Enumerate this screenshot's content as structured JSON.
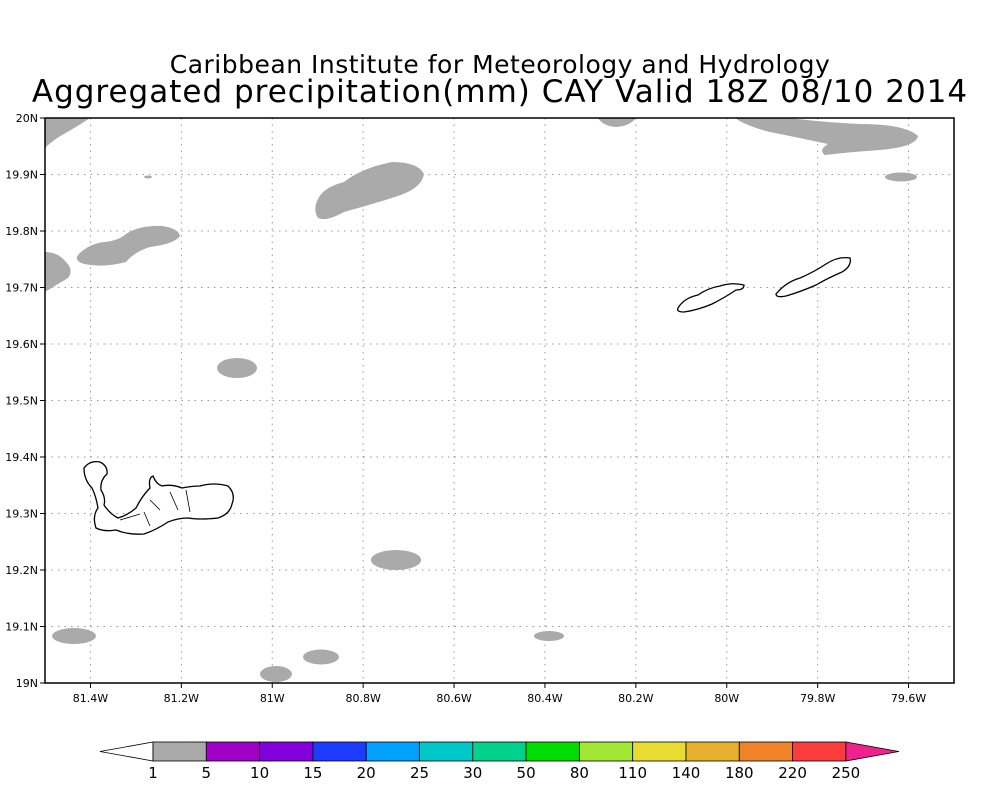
{
  "title": {
    "line1": "Caribbean Institute for Meteorology and Hydrology",
    "line2": "Aggregated precipitation(mm) CAY Valid 18Z 08/10 2014"
  },
  "map": {
    "lon_range": [
      -81.5,
      -79.5
    ],
    "lat_range": [
      19.0,
      20.0
    ],
    "x_ticks": [
      {
        "value": -81.4,
        "label": "81.4W"
      },
      {
        "value": -81.2,
        "label": "81.2W"
      },
      {
        "value": -81.0,
        "label": "81W"
      },
      {
        "value": -80.8,
        "label": "80.8W"
      },
      {
        "value": -80.6,
        "label": "80.6W"
      },
      {
        "value": -80.4,
        "label": "80.4W"
      },
      {
        "value": -80.2,
        "label": "80.2W"
      },
      {
        "value": -80.0,
        "label": "80W"
      },
      {
        "value": -79.8,
        "label": "79.8W"
      },
      {
        "value": -79.6,
        "label": "79.6W"
      }
    ],
    "y_ticks": [
      {
        "value": 19.0,
        "label": "19N"
      },
      {
        "value": 19.1,
        "label": "19.1N"
      },
      {
        "value": 19.2,
        "label": "19.2N"
      },
      {
        "value": 19.3,
        "label": "19.3N"
      },
      {
        "value": 19.4,
        "label": "19.4N"
      },
      {
        "value": 19.5,
        "label": "19.5N"
      },
      {
        "value": 19.6,
        "label": "19.6N"
      },
      {
        "value": 19.7,
        "label": "19.7N"
      },
      {
        "value": 19.8,
        "label": "19.8N"
      },
      {
        "value": 19.9,
        "label": "19.9N"
      },
      {
        "value": 20.0,
        "label": "20N"
      }
    ],
    "grid": true,
    "precip_color_1_5": "#aaaaaa",
    "precip_color_5_10": "#a000c8"
  },
  "legend": {
    "under_color": "#ffffff",
    "over_color": "#f0208c",
    "bins": [
      {
        "color": "#aaaaaa"
      },
      {
        "color": "#a000c8"
      },
      {
        "color": "#8200dc"
      },
      {
        "color": "#1e3cff"
      },
      {
        "color": "#00a0ff"
      },
      {
        "color": "#00c8c8"
      },
      {
        "color": "#00d28c"
      },
      {
        "color": "#00dc00"
      },
      {
        "color": "#a0e632"
      },
      {
        "color": "#e6dc32"
      },
      {
        "color": "#e6af2d"
      },
      {
        "color": "#f08228"
      },
      {
        "color": "#fa3c3c"
      }
    ],
    "labels": [
      "1",
      "5",
      "10",
      "15",
      "20",
      "25",
      "30",
      "50",
      "80",
      "110",
      "140",
      "180",
      "220",
      "250"
    ]
  }
}
